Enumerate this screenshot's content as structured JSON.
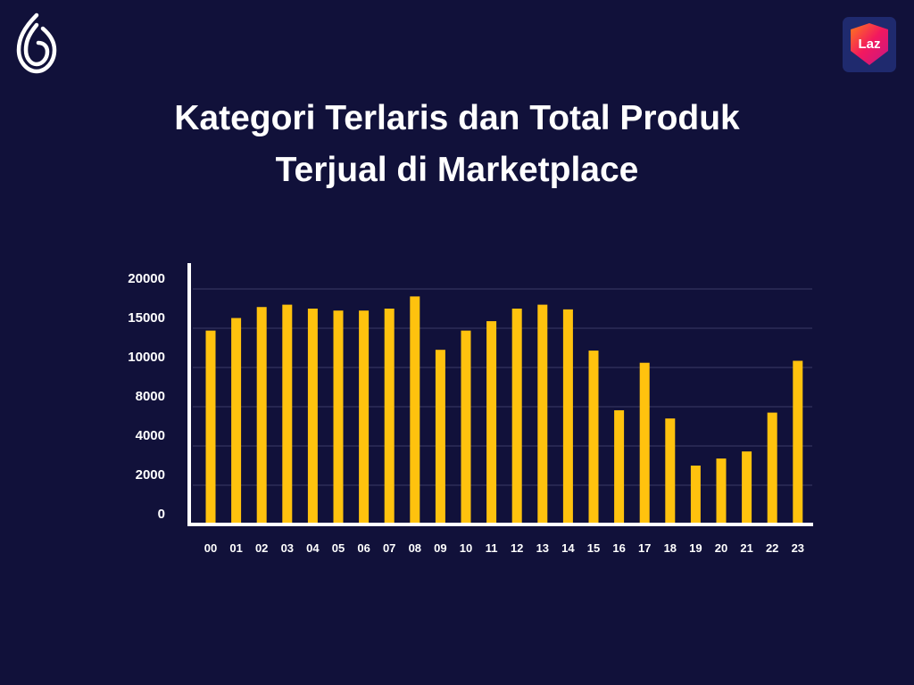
{
  "header": {
    "title_line1": "Kategori Terlaris dan Total Produk",
    "title_line2": "Terjual di Marketplace",
    "logo_icon": "brand-leaf-logo-icon",
    "badge_icon": "lazada-logo-icon",
    "badge_text": "Laz"
  },
  "colors": {
    "background": "#11113a",
    "bar": "#ffc20e",
    "axis": "#ffffff",
    "grid": "#3a3a66",
    "text": "#ffffff"
  },
  "chart_data": {
    "type": "bar",
    "title": "Kategori Terlaris dan Total Produk Terjual di Marketplace",
    "xlabel": "",
    "ylabel": "",
    "categories": [
      "00",
      "01",
      "02",
      "03",
      "04",
      "05",
      "06",
      "07",
      "08",
      "09",
      "10",
      "11",
      "12",
      "13",
      "14",
      "15",
      "16",
      "17",
      "18",
      "19",
      "20",
      "21",
      "22",
      "23"
    ],
    "y_tick_labels": [
      "0",
      "2000",
      "4000",
      "8000",
      "10000",
      "15000",
      "20000"
    ],
    "y_tick_count": 7,
    "values_in_tick_steps": [
      4.94,
      5.26,
      5.54,
      5.6,
      5.5,
      5.45,
      5.45,
      5.5,
      5.81,
      4.45,
      4.94,
      5.18,
      5.5,
      5.6,
      5.48,
      4.43,
      2.91,
      4.12,
      2.7,
      1.5,
      1.68,
      1.86,
      2.85,
      4.17
    ],
    "grid": true,
    "legend": "none"
  }
}
